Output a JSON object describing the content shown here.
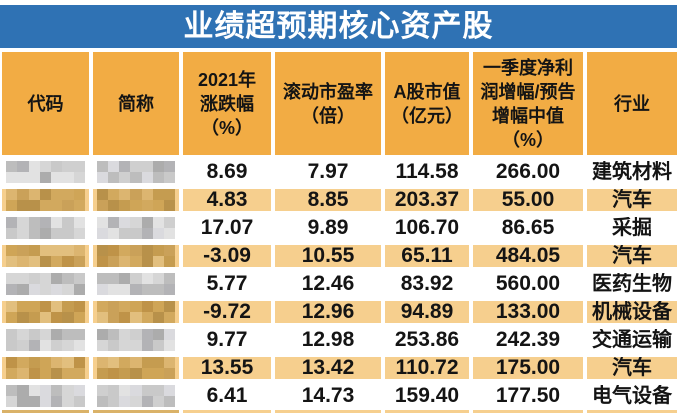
{
  "title": "业绩超预期核心资产股",
  "colors": {
    "page_bg": "#ffffff",
    "banner_bg": "#2f72b4",
    "banner_text": "#ffffff",
    "header_bg": "#f2ac44",
    "row_alt_bg": "#f6cf8e",
    "text": "#141414",
    "separator": "#ffffff",
    "cut_mosaic_bg": "#dab268"
  },
  "mosaic_palettes": {
    "gray": [
      "#acacac",
      "#bdbdbd",
      "#c9c9c9",
      "#d6d6d6",
      "#e2e2e2",
      "#b3b3b6",
      "#cfcfcf",
      "#dadade"
    ],
    "tan": [
      "#d2a95e",
      "#c59c50",
      "#b8914a",
      "#dcb570",
      "#cfa557",
      "#e2bf7e",
      "#bf9348",
      "#caa159"
    ]
  },
  "table": {
    "columns": [
      {
        "key": "code",
        "label": "代码",
        "censored": true
      },
      {
        "key": "name",
        "label": "简称",
        "censored": true
      },
      {
        "key": "chg",
        "label": "2021年\n涨跌幅\n（%）",
        "censored": false
      },
      {
        "key": "pe",
        "label": "滚动市盈率\n（倍）",
        "censored": false
      },
      {
        "key": "mcap",
        "label": "A股市值\n（亿元）",
        "censored": false
      },
      {
        "key": "q1",
        "label": "一季度净利\n润增幅/预告\n增幅中值\n（%）",
        "censored": false
      },
      {
        "key": "industry",
        "label": "行业",
        "censored": false
      }
    ],
    "rows": [
      {
        "chg": "8.69",
        "pe": "7.97",
        "mcap": "114.58",
        "q1": "266.00",
        "industry": "建筑材料"
      },
      {
        "chg": "4.83",
        "pe": "8.85",
        "mcap": "203.37",
        "q1": "55.00",
        "industry": "汽车"
      },
      {
        "chg": "17.07",
        "pe": "9.89",
        "mcap": "106.70",
        "q1": "86.65",
        "industry": "采掘"
      },
      {
        "chg": "-3.09",
        "pe": "10.55",
        "mcap": "65.11",
        "q1": "484.05",
        "industry": "汽车"
      },
      {
        "chg": "5.77",
        "pe": "12.46",
        "mcap": "83.92",
        "q1": "560.00",
        "industry": "医药生物"
      },
      {
        "chg": "-9.72",
        "pe": "12.96",
        "mcap": "94.89",
        "q1": "133.00",
        "industry": "机械设备"
      },
      {
        "chg": "9.77",
        "pe": "12.98",
        "mcap": "253.86",
        "q1": "242.39",
        "industry": "交通运输"
      },
      {
        "chg": "13.55",
        "pe": "13.42",
        "mcap": "110.72",
        "q1": "175.00",
        "industry": "汽车"
      },
      {
        "chg": "6.41",
        "pe": "14.73",
        "mcap": "159.40",
        "q1": "177.50",
        "industry": "电气设备"
      }
    ],
    "cutoff_row_visible": true
  },
  "chart_data": {
    "type": "table",
    "title": "业绩超预期核心资产股",
    "columns": [
      "代码",
      "简称",
      "2021年涨跌幅（%）",
      "滚动市盈率（倍）",
      "A股市值（亿元）",
      "一季度净利润增幅/预告增幅中值（%）",
      "行业"
    ],
    "rows": [
      [
        "(已打码)",
        "(已打码)",
        8.69,
        7.97,
        114.58,
        266.0,
        "建筑材料"
      ],
      [
        "(已打码)",
        "(已打码)",
        4.83,
        8.85,
        203.37,
        55.0,
        "汽车"
      ],
      [
        "(已打码)",
        "(已打码)",
        17.07,
        9.89,
        106.7,
        86.65,
        "采掘"
      ],
      [
        "(已打码)",
        "(已打码)",
        -3.09,
        10.55,
        65.11,
        484.05,
        "汽车"
      ],
      [
        "(已打码)",
        "(已打码)",
        5.77,
        12.46,
        83.92,
        560.0,
        "医药生物"
      ],
      [
        "(已打码)",
        "(已打码)",
        -9.72,
        12.96,
        94.89,
        133.0,
        "机械设备"
      ],
      [
        "(已打码)",
        "(已打码)",
        9.77,
        12.98,
        253.86,
        242.39,
        "交通运输"
      ],
      [
        "(已打码)",
        "(已打码)",
        13.55,
        13.42,
        110.72,
        175.0,
        "汽车"
      ],
      [
        "(已打码)",
        "(已打码)",
        6.41,
        14.73,
        159.4,
        177.5,
        "电气设备"
      ]
    ],
    "notes": "前两列（代码、简称）在截图中被马赛克遮盖"
  }
}
